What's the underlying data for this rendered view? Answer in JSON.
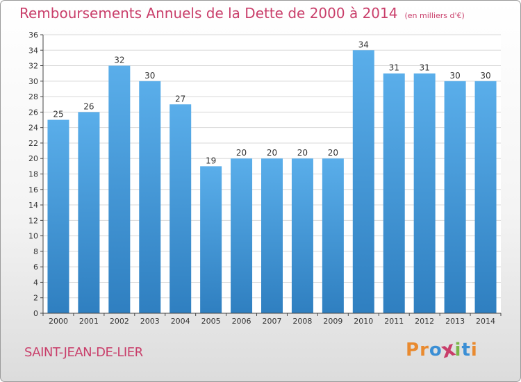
{
  "colors": {
    "title": "#c93e6a",
    "bar_light": "#5aaeea",
    "bar_dark": "#2f7fc0",
    "grid": "#d8d8d8",
    "axis": "#444444",
    "text": "#333333",
    "logo_letters": [
      "#e98a2f",
      "#e98a2f",
      "#3b8fd5",
      "#c93e6a",
      "#7ab648",
      "#3b8fd5",
      "#e98a2f"
    ]
  },
  "header": {
    "title": "Remboursements Annuels de la Dette de 2000 à 2014",
    "unit_note": "(en milliers d'€)"
  },
  "footer": {
    "place": "SAINT-JEAN-DE-LIER",
    "logo_text": "Proxiti"
  },
  "chart_data": {
    "type": "bar",
    "title": "Remboursements Annuels de la Dette de 2000 à 2014",
    "unit": "(en milliers d'€)",
    "xlabel": "",
    "ylabel": "",
    "categories": [
      "2000",
      "2001",
      "2002",
      "2003",
      "2004",
      "2005",
      "2006",
      "2007",
      "2008",
      "2009",
      "2010",
      "2011",
      "2012",
      "2013",
      "2014"
    ],
    "values": [
      25,
      26,
      32,
      30,
      27,
      19,
      20,
      20,
      20,
      20,
      34,
      31,
      31,
      30,
      30
    ],
    "ylim": [
      0,
      36
    ],
    "ytick_step": 2,
    "grid": true,
    "data_labels": true
  }
}
